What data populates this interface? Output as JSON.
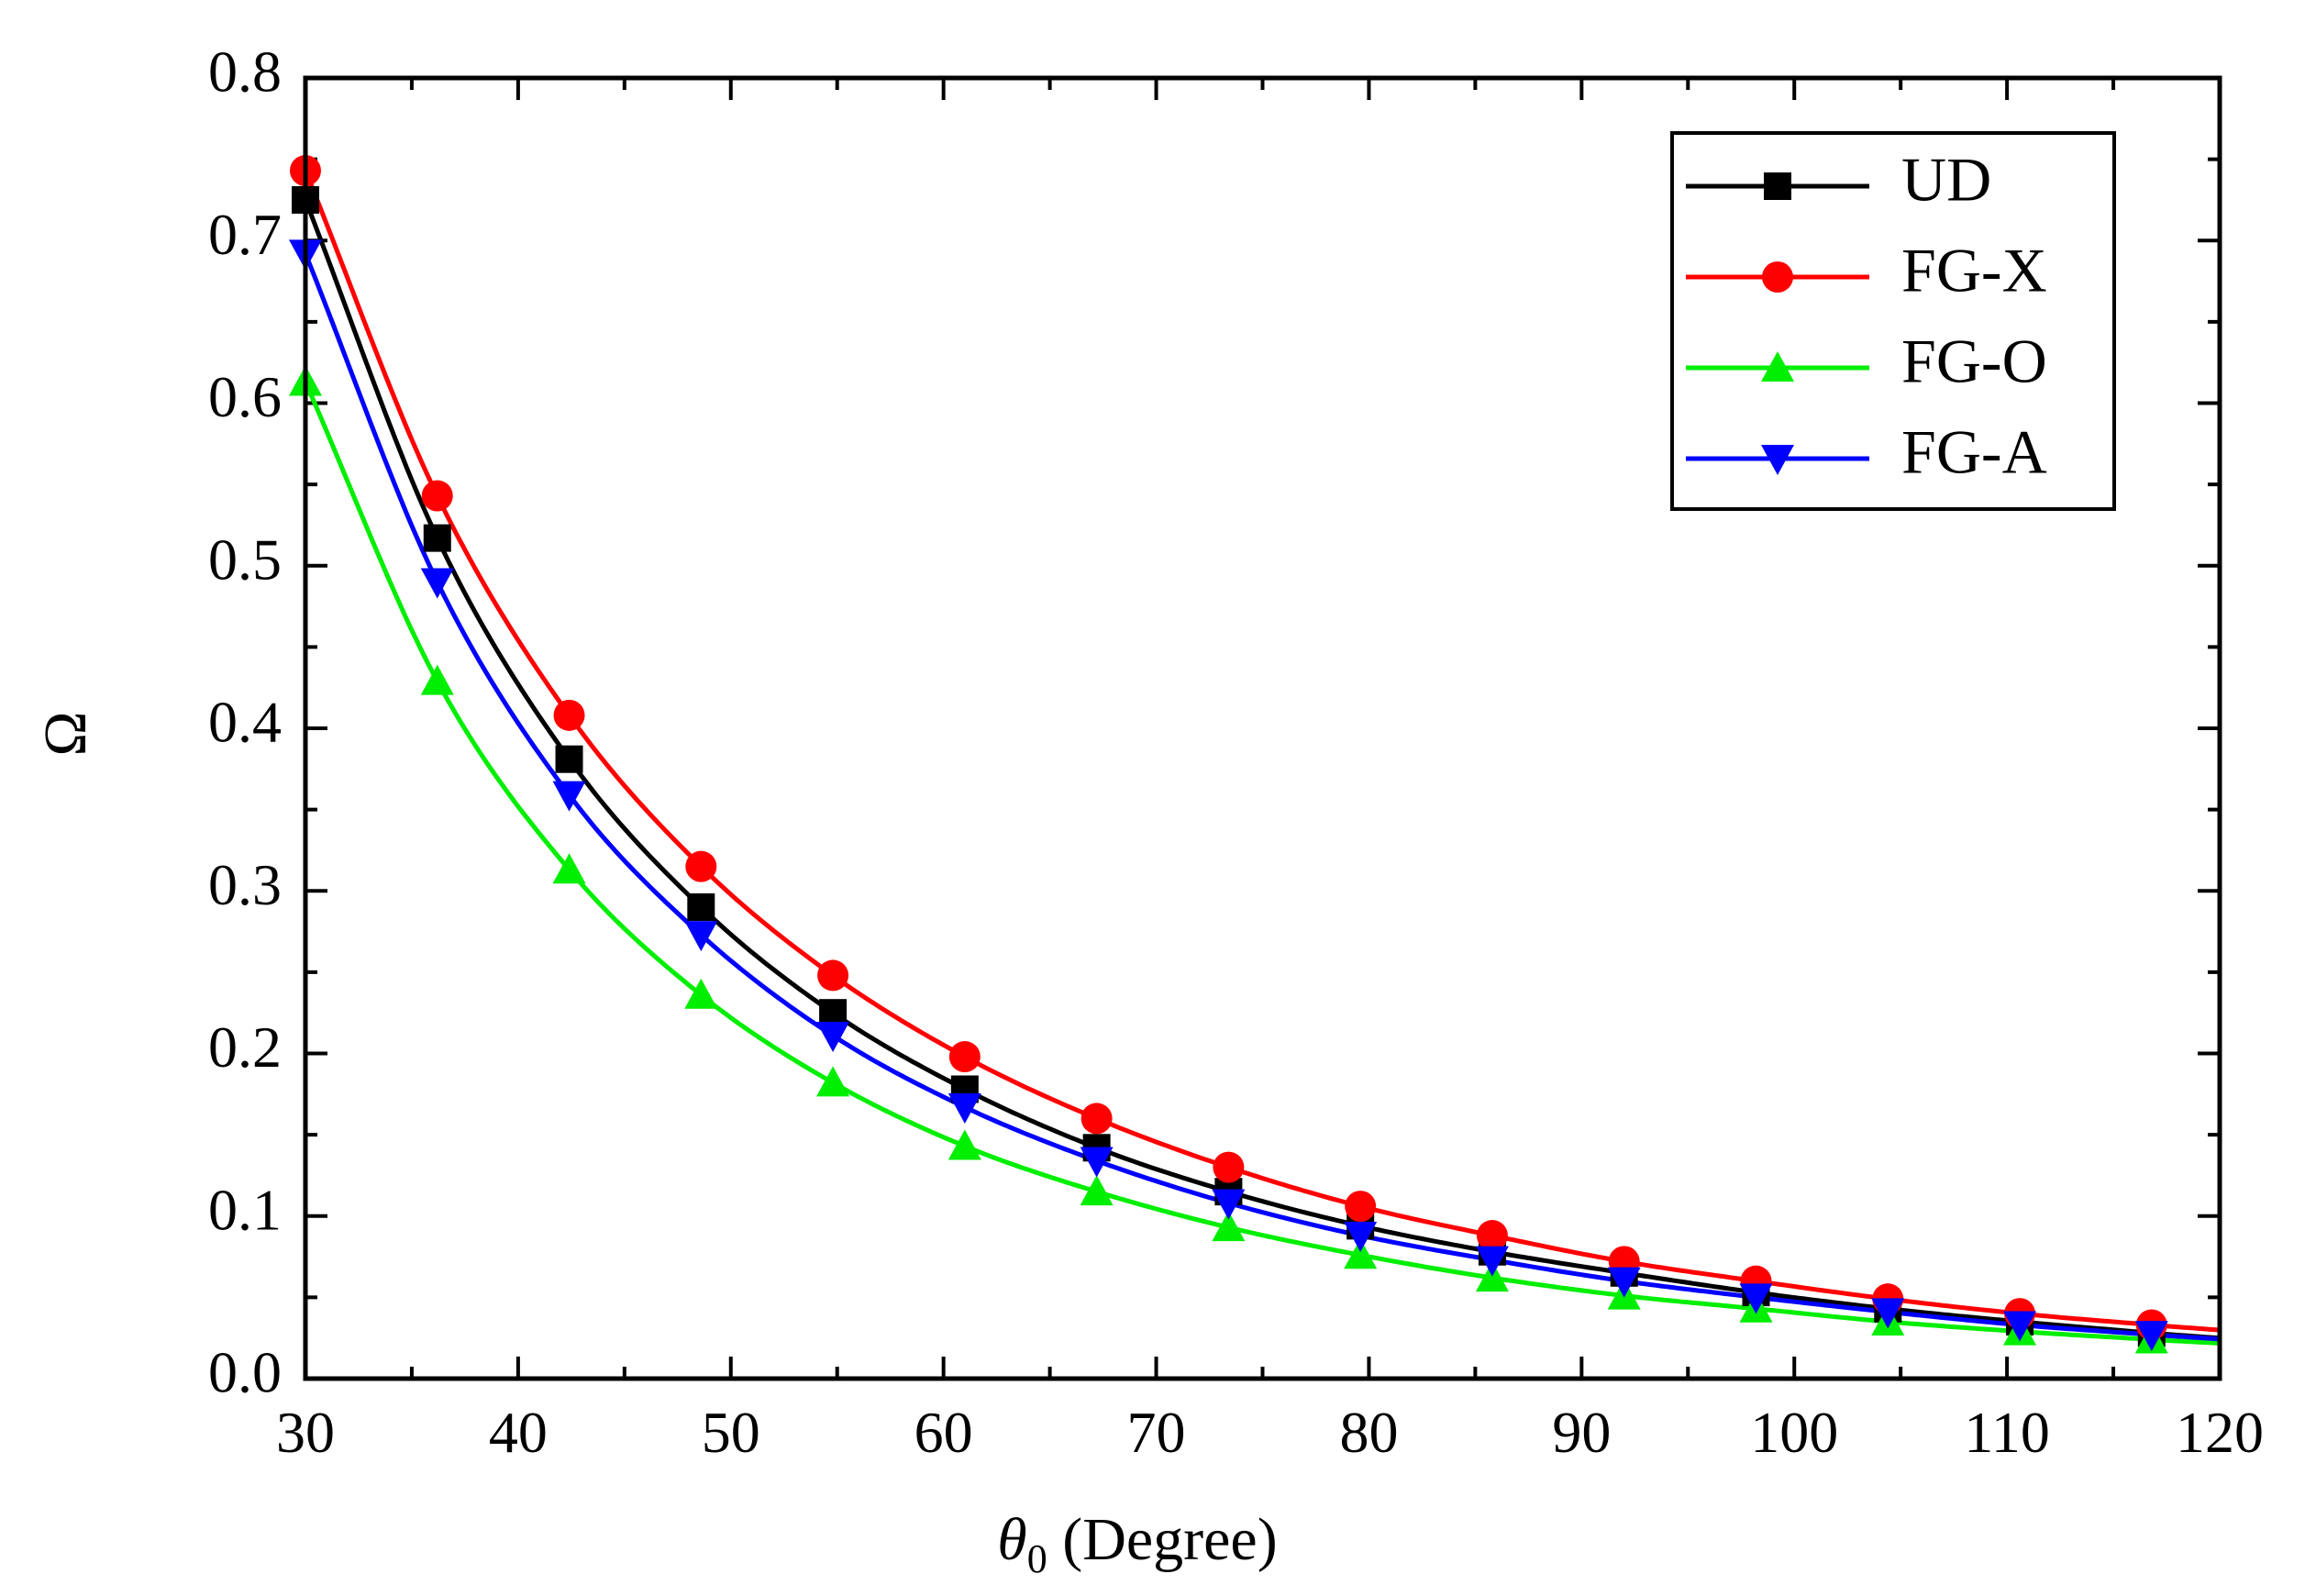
{
  "chart_data": {
    "type": "line",
    "title": "",
    "xlabel_symbol": "θ",
    "xlabel_subscript": "0",
    "xlabel_rest": " (Degree)",
    "ylabel": "Ω",
    "xlim": [
      30,
      120
    ],
    "ylim": [
      0.0,
      0.8
    ],
    "xticks": [
      30,
      40,
      50,
      60,
      70,
      80,
      90,
      100,
      110,
      120
    ],
    "yticks": [
      "0.0",
      "0.1",
      "0.2",
      "0.3",
      "0.4",
      "0.5",
      "0.6",
      "0.7",
      "0.8"
    ],
    "grid": false,
    "legend_position": "top-right",
    "x": [
      30,
      36.2,
      42.4,
      48.6,
      54.8,
      61.0,
      67.2,
      73.4,
      79.6,
      85.8,
      92.0,
      98.2,
      104.4,
      110.6,
      116.8
    ],
    "series": [
      {
        "name": "UD",
        "color": "#000000",
        "marker": "square",
        "values": [
          0.725,
          0.517,
          0.381,
          0.29,
          0.225,
          0.178,
          0.142,
          0.115,
          0.094,
          0.078,
          0.065,
          0.053,
          0.043,
          0.035,
          0.028
        ]
      },
      {
        "name": "FG-X",
        "color": "#ff0000",
        "marker": "circle",
        "values": [
          0.743,
          0.543,
          0.408,
          0.315,
          0.248,
          0.198,
          0.16,
          0.13,
          0.106,
          0.088,
          0.072,
          0.06,
          0.049,
          0.04,
          0.033
        ]
      },
      {
        "name": "FG-O",
        "color": "#00ee00",
        "marker": "triangle-up",
        "values": [
          0.613,
          0.429,
          0.313,
          0.236,
          0.182,
          0.143,
          0.115,
          0.093,
          0.076,
          0.062,
          0.051,
          0.043,
          0.035,
          0.029,
          0.024
        ]
      },
      {
        "name": "FG-A",
        "color": "#0000ff",
        "marker": "triangle-down",
        "values": [
          0.692,
          0.49,
          0.359,
          0.273,
          0.211,
          0.167,
          0.134,
          0.108,
          0.088,
          0.073,
          0.06,
          0.05,
          0.041,
          0.033,
          0.027
        ]
      }
    ]
  }
}
